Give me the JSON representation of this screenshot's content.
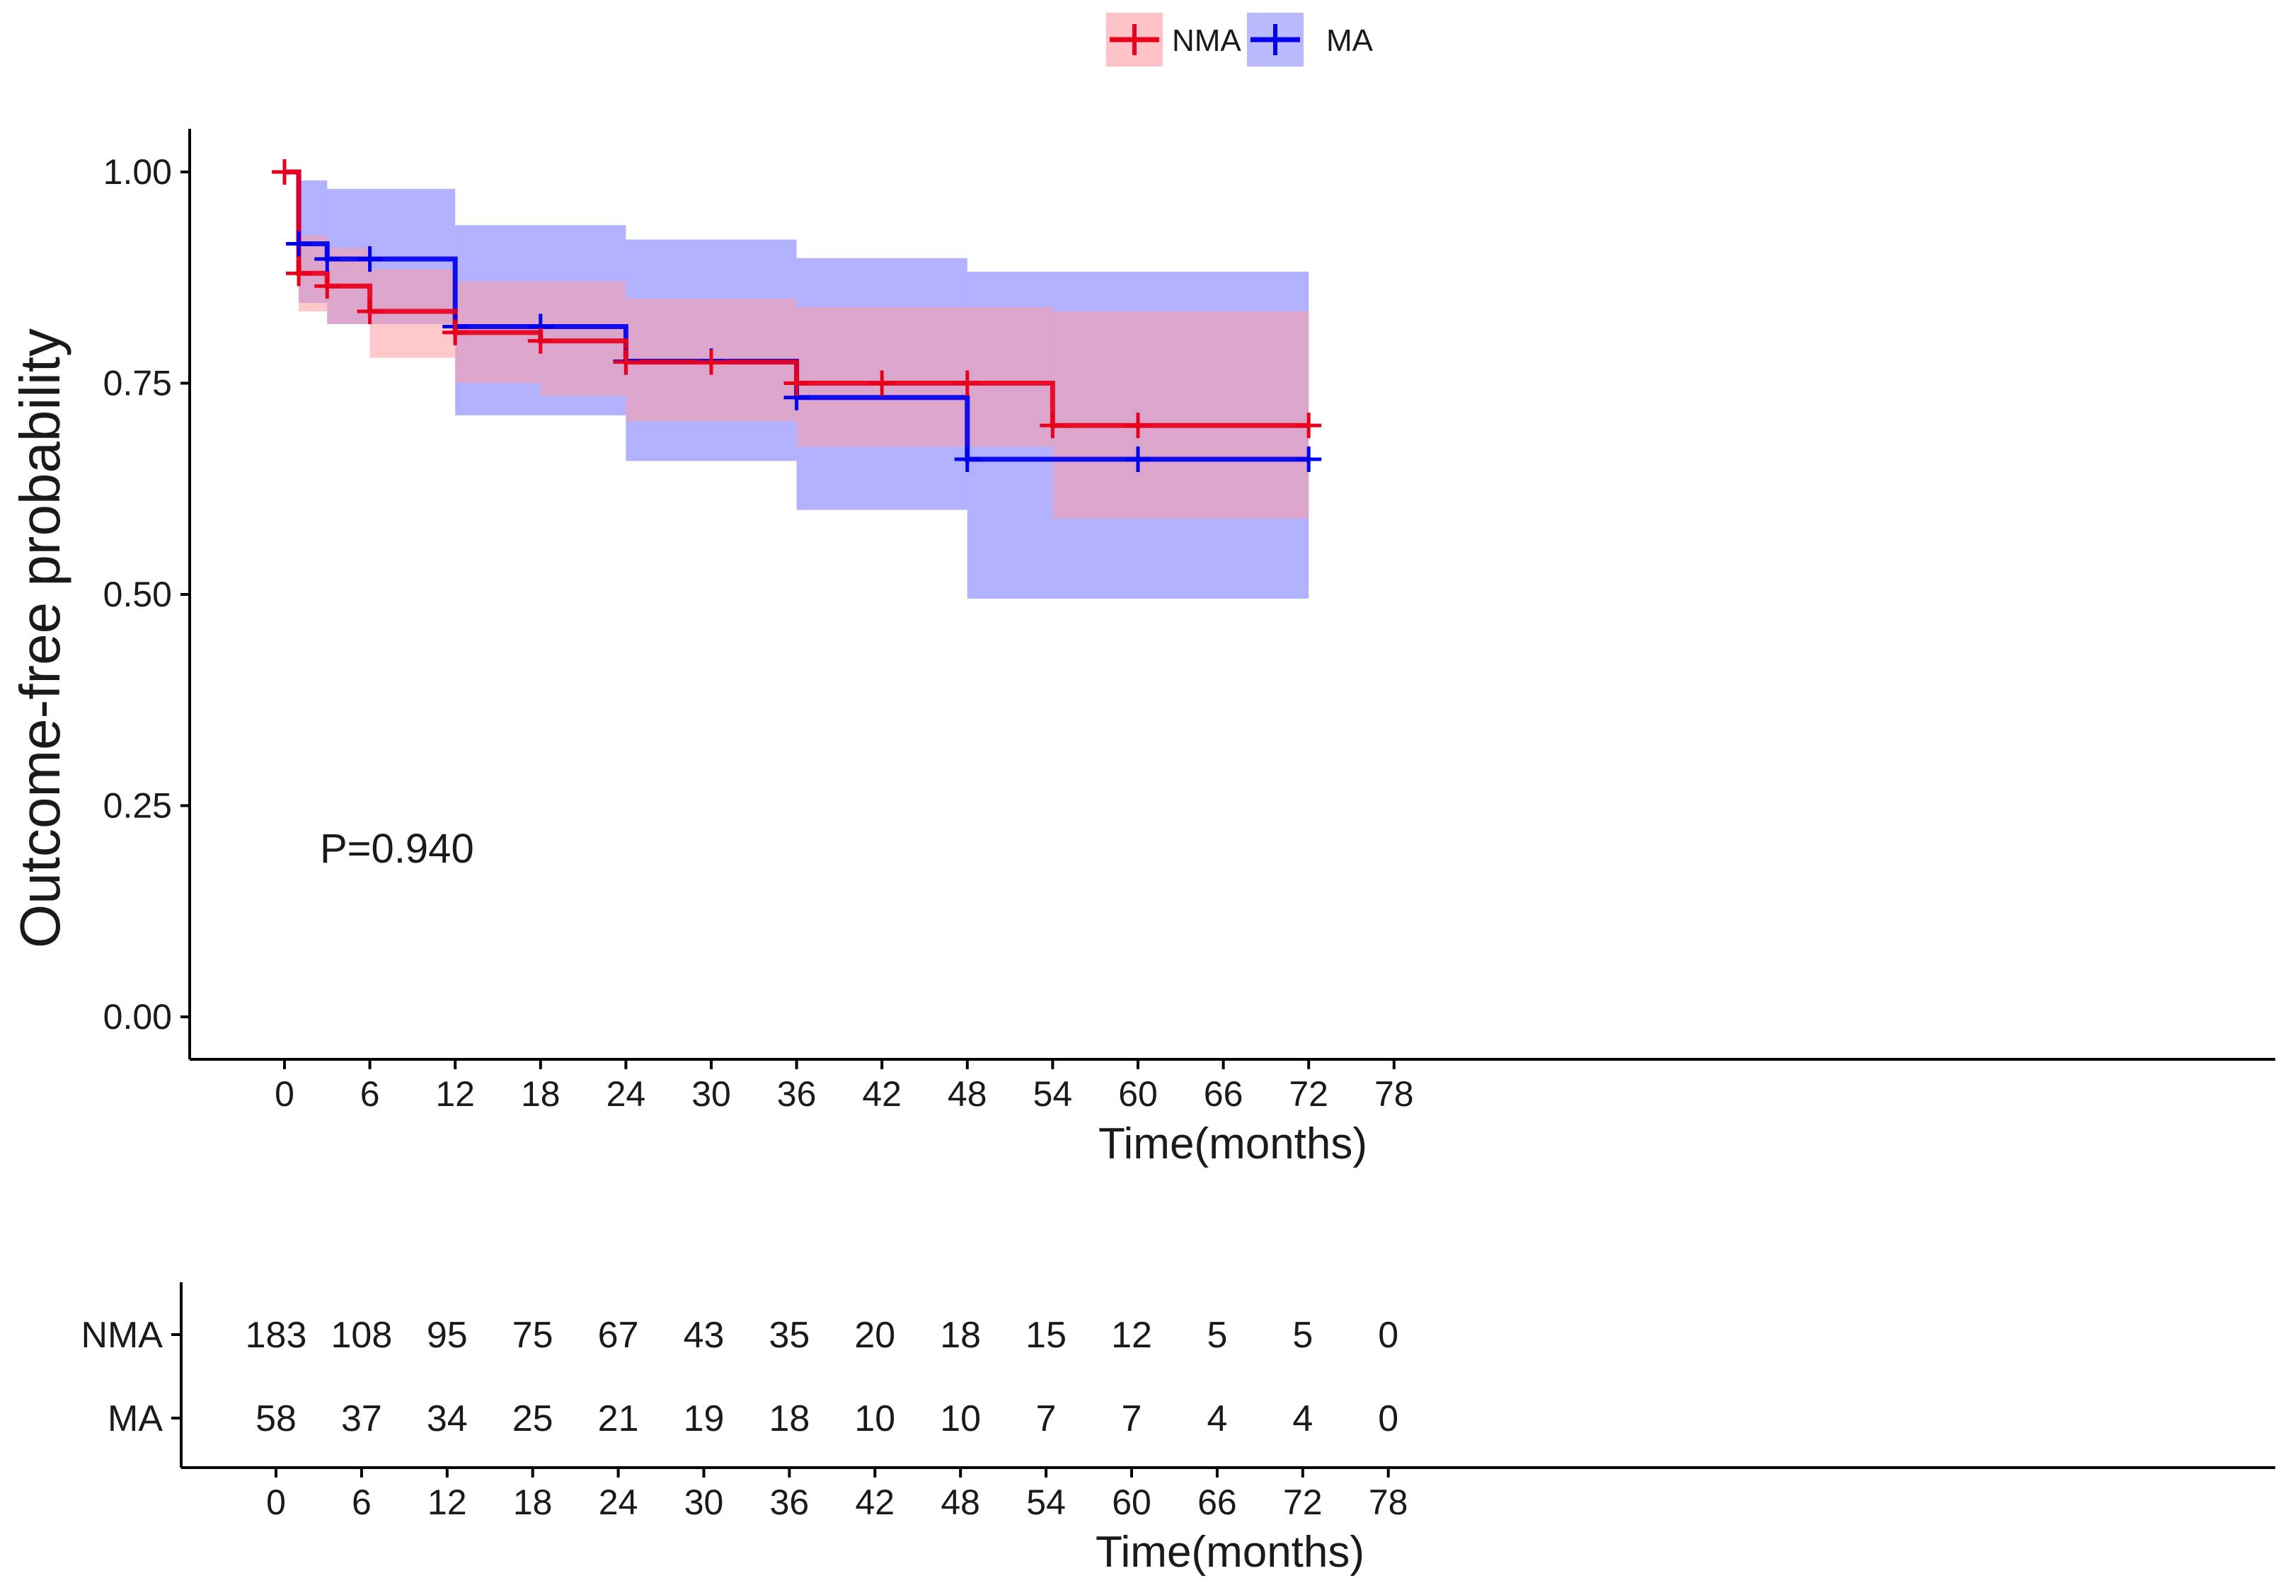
{
  "chart_data": [
    {
      "type": "line",
      "subtype": "kaplan-meier-step",
      "xlabel": "Time(months)",
      "ylabel": "Outcome-free probability",
      "xlim": [
        0,
        78
      ],
      "ylim": [
        0,
        1
      ],
      "x_ticks": [
        "0",
        "6",
        "12",
        "18",
        "24",
        "30",
        "36",
        "42",
        "48",
        "54",
        "60",
        "66",
        "72",
        "78"
      ],
      "y_ticks": [
        "0.00",
        "0.25",
        "0.50",
        "0.75",
        "1.00"
      ],
      "grid": false,
      "legend_position": "top",
      "annotation": "P=0.940",
      "series": [
        {
          "name": "NMA",
          "color": "#e8001c",
          "band_color": "#ff9aa0",
          "steps": [
            {
              "x": 0,
              "y": 1.0
            },
            {
              "x": 1,
              "y": 0.88
            },
            {
              "x": 3,
              "y": 0.865
            },
            {
              "x": 6,
              "y": 0.835
            },
            {
              "x": 12,
              "y": 0.81
            },
            {
              "x": 18,
              "y": 0.8
            },
            {
              "x": 24,
              "y": 0.775
            },
            {
              "x": 36,
              "y": 0.75
            },
            {
              "x": 54,
              "y": 0.7
            },
            {
              "x": 72,
              "y": 0.7
            }
          ],
          "upper": [
            1.0,
            0.925,
            0.91,
            0.885,
            0.87,
            0.87,
            0.85,
            0.84,
            0.835,
            0.835
          ],
          "lower": [
            1.0,
            0.835,
            0.82,
            0.78,
            0.75,
            0.735,
            0.705,
            0.675,
            0.59,
            0.59
          ],
          "censor_x": [
            0,
            1,
            3,
            6,
            12,
            18,
            24,
            30,
            36,
            42,
            48,
            54,
            60,
            72
          ]
        },
        {
          "name": "MA",
          "color": "#0000ee",
          "band_color": "#8c8cff",
          "steps": [
            {
              "x": 0,
              "y": 1.0
            },
            {
              "x": 1,
              "y": 0.915
            },
            {
              "x": 3,
              "y": 0.897
            },
            {
              "x": 12,
              "y": 0.817
            },
            {
              "x": 24,
              "y": 0.776
            },
            {
              "x": 36,
              "y": 0.733
            },
            {
              "x": 48,
              "y": 0.66
            },
            {
              "x": 72,
              "y": 0.66
            }
          ],
          "upper": [
            1.0,
            0.99,
            0.98,
            0.937,
            0.92,
            0.898,
            0.882,
            0.882
          ],
          "lower": [
            1.0,
            0.845,
            0.82,
            0.712,
            0.658,
            0.6,
            0.495,
            0.495
          ],
          "censor_x": [
            1,
            3,
            6,
            12,
            18,
            24,
            30,
            36,
            48,
            60,
            72
          ]
        }
      ]
    },
    {
      "type": "table",
      "title": "",
      "xlabel": "Time(months)",
      "x": [
        0,
        6,
        12,
        18,
        24,
        30,
        36,
        42,
        48,
        54,
        60,
        66,
        72,
        78
      ],
      "x_ticks": [
        "0",
        "6",
        "12",
        "18",
        "24",
        "30",
        "36",
        "42",
        "48",
        "54",
        "60",
        "66",
        "72",
        "78"
      ],
      "rows": [
        {
          "name": "NMA",
          "values": [
            "183",
            "108",
            "95",
            "75",
            "67",
            "43",
            "35",
            "20",
            "18",
            "15",
            "12",
            "5",
            "5",
            "0"
          ]
        },
        {
          "name": "MA",
          "values": [
            "58",
            "37",
            "34",
            "25",
            "21",
            "19",
            "18",
            "10",
            "10",
            "7",
            "7",
            "4",
            "4",
            "0"
          ]
        }
      ]
    }
  ]
}
